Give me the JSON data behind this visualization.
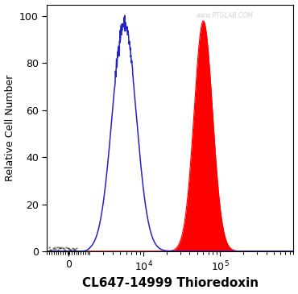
{
  "xlabel": "CL647-14999 Thioredoxin",
  "ylabel": "Relative Cell Number",
  "xlabel_fontsize": 11,
  "xlabel_fontweight": "bold",
  "ylabel_fontsize": 9,
  "watermark": "www.PTGLAB.COM",
  "ylim": [
    0,
    105
  ],
  "yticks": [
    0,
    20,
    40,
    60,
    80,
    100
  ],
  "blue_peak_log": 3.75,
  "blue_peak_height": 97,
  "blue_sigma_log": 0.155,
  "red_peak_log": 4.78,
  "red_peak_height": 98,
  "red_sigma_log": 0.12,
  "blue_color": "#2222cc",
  "red_color": "#ff0000",
  "bg_color": "#ffffff",
  "linthresh": 2000,
  "linscale": 0.25,
  "xlim_min": -2000,
  "xlim_max": 600000
}
